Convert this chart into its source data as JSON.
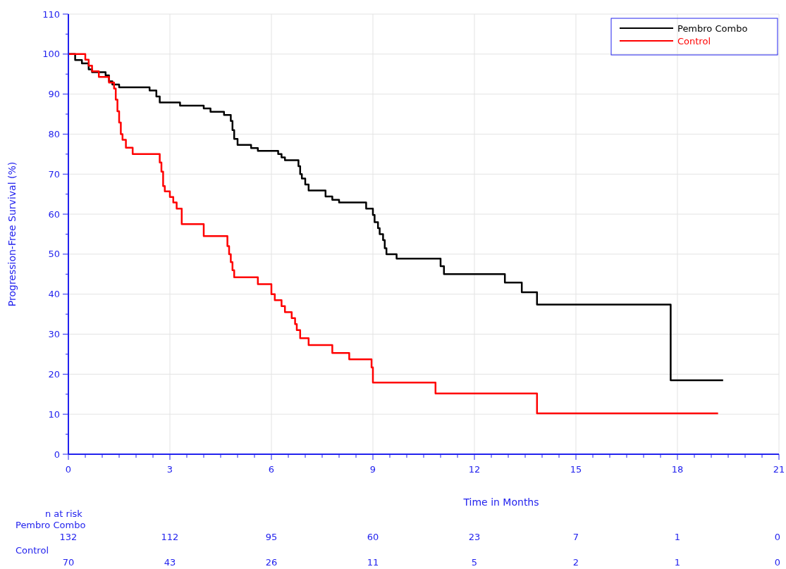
{
  "chart_data": {
    "type": "step",
    "xlabel": "Time in Months",
    "ylabel": "Progression-Free Survival (%)",
    "xlim": [
      0,
      21
    ],
    "xticks": [
      0,
      3,
      6,
      9,
      12,
      15,
      18,
      21
    ],
    "ylim": [
      0,
      110
    ],
    "yticks": [
      0,
      10,
      20,
      30,
      40,
      50,
      60,
      70,
      80,
      90,
      100,
      110
    ],
    "grid": true,
    "legend": "top right",
    "marker": "none",
    "line_style": "solid",
    "series": [
      {
        "name": "Pembro Combo",
        "color": "#000000",
        "x": [
          0,
          0.2,
          0.4,
          0.6,
          0.7,
          1.1,
          1.2,
          1.3,
          1.5,
          2.4,
          2.6,
          2.7,
          3.3,
          4.0,
          4.2,
          4.6,
          4.8,
          4.85,
          4.9,
          5.0,
          5.4,
          5.6,
          6.2,
          6.3,
          6.4,
          6.8,
          6.85,
          6.9,
          7.0,
          7.1,
          7.6,
          7.8,
          8.0,
          8.8,
          9.0,
          9.05,
          9.15,
          9.2,
          9.3,
          9.35,
          9.4,
          9.7,
          11.0,
          11.1,
          12.9,
          13.4,
          13.85,
          17.8,
          19.35
        ],
        "values": [
          100,
          98.5,
          97.7,
          96.2,
          95.5,
          94.7,
          93.2,
          92.4,
          91.7,
          90.9,
          89.4,
          87.9,
          87.1,
          86.4,
          85.6,
          84.8,
          83.3,
          81,
          78.8,
          77.3,
          76.5,
          75.8,
          75,
          74.2,
          73.5,
          72,
          70,
          68.9,
          67.4,
          65.9,
          64.4,
          63.6,
          62.9,
          61.4,
          59.8,
          58,
          56.5,
          55,
          53.5,
          51.5,
          50,
          48.9,
          47,
          45,
          42.9,
          40.5,
          37.4,
          18.5,
          18.5
        ]
      },
      {
        "name": "Control",
        "color": "#ff0000",
        "x": [
          0,
          0.5,
          0.6,
          0.7,
          0.9,
          1.2,
          1.35,
          1.4,
          1.45,
          1.5,
          1.55,
          1.6,
          1.7,
          1.9,
          2.7,
          2.75,
          2.8,
          2.85,
          3.0,
          3.1,
          3.2,
          3.35,
          4.0,
          4.7,
          4.75,
          4.8,
          4.85,
          4.9,
          5.6,
          6.0,
          6.1,
          6.3,
          6.4,
          6.6,
          6.7,
          6.75,
          6.85,
          7.1,
          7.8,
          8.3,
          8.96,
          9.0,
          10.85,
          13.85,
          19.2
        ],
        "values": [
          100,
          98.6,
          97.1,
          95.7,
          94.3,
          92.9,
          91.4,
          88.6,
          85.7,
          82.9,
          80,
          78.6,
          76.6,
          75,
          72.9,
          70.6,
          67,
          65.7,
          64.3,
          62.9,
          61.4,
          57.5,
          54.5,
          52,
          50,
          48,
          46,
          44.2,
          42.5,
          40,
          38.5,
          37,
          35.5,
          34,
          32.5,
          31,
          29,
          27.3,
          25.3,
          23.7,
          21.7,
          17.9,
          15.2,
          10.2,
          10.2
        ]
      }
    ],
    "annotations": [
      "n at risk",
      "Pembro Combo",
      "132",
      "112",
      "95",
      "60",
      "23",
      "7",
      "1",
      "0",
      "Control",
      "70",
      "43",
      "26",
      "11",
      "5",
      "2",
      "1",
      "0"
    ]
  }
}
